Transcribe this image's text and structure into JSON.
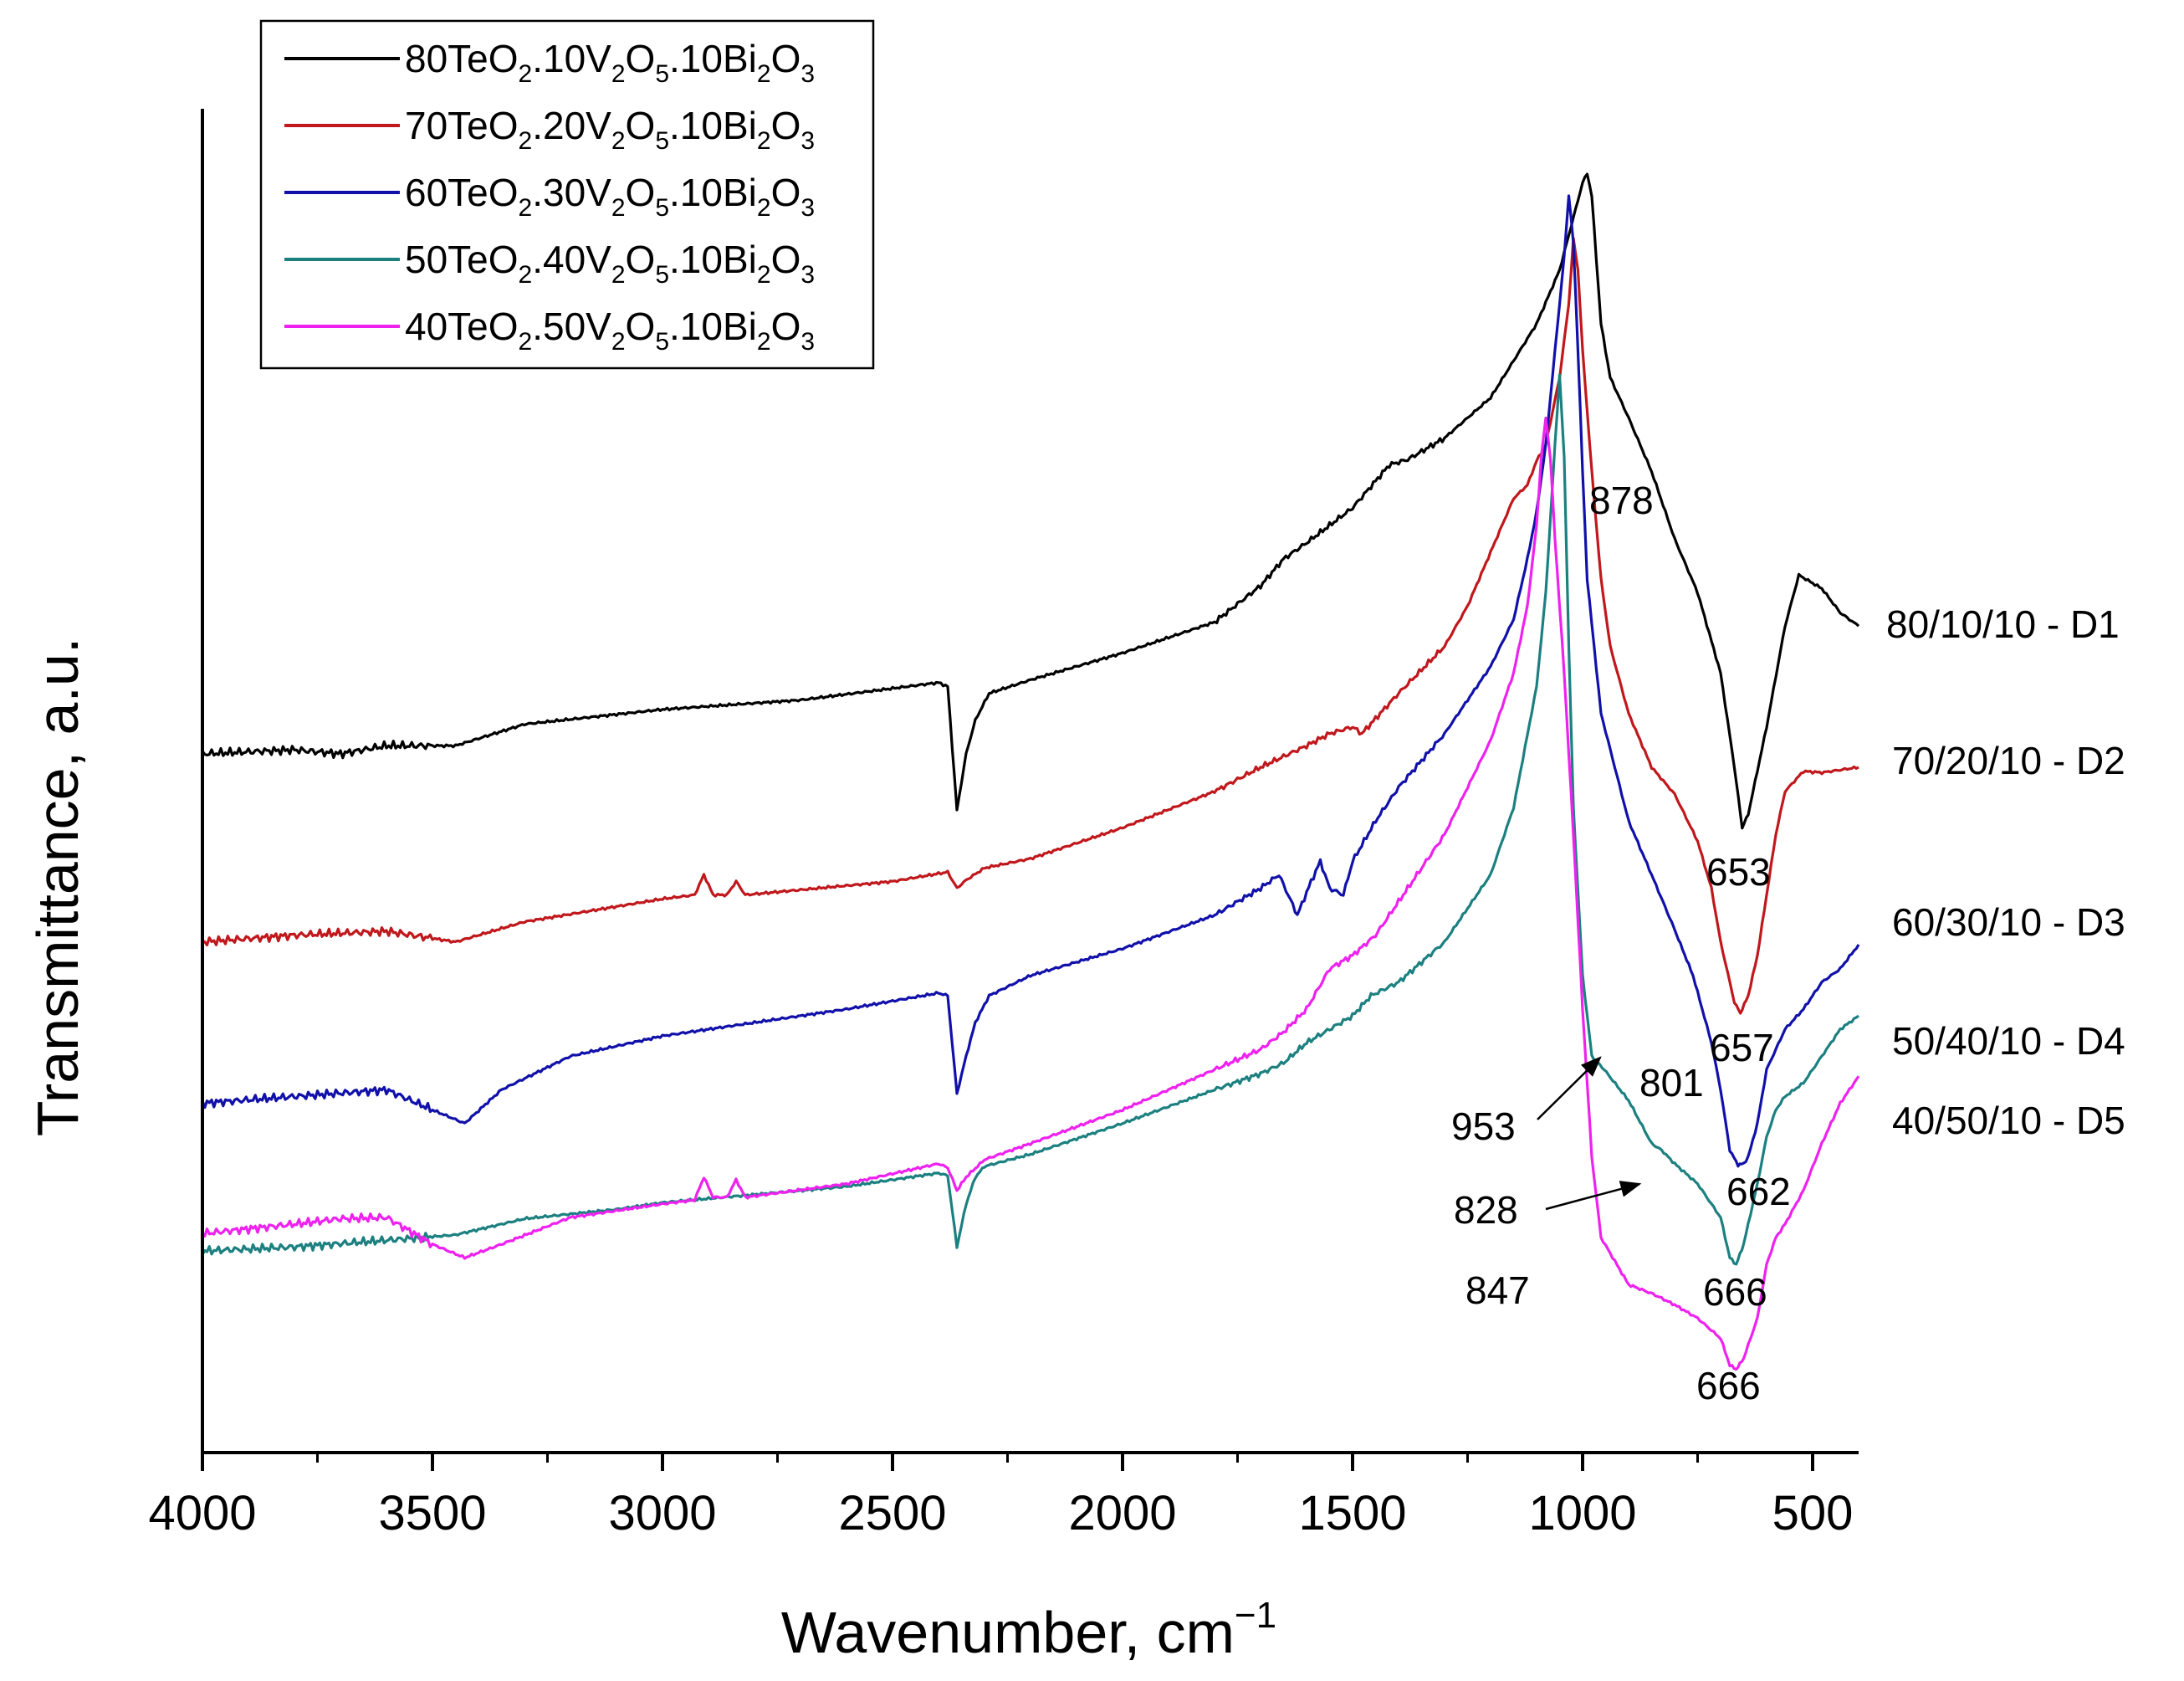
{
  "chart_data": {
    "type": "line",
    "title": "",
    "xlabel": "Wavenumber, cm",
    "xlabel_superscript": "−1",
    "ylabel": "Transmittance, a.u.",
    "xlim": [
      4000,
      400
    ],
    "x_reversed": true,
    "ylim": [
      0,
      100
    ],
    "y_ticks_shown": false,
    "grid": false,
    "legend_position": "top-left",
    "x_ticks": [
      "4000",
      "3500",
      "3000",
      "2500",
      "2000",
      "1500",
      "1000",
      "500"
    ],
    "series": [
      {
        "name": "80TeO2.10V2O5.10Bi2O3",
        "legend_parts": [
          "80TeO",
          "2",
          ".10V",
          "2",
          "O",
          "5",
          ".10Bi",
          "2",
          "O",
          "3"
        ],
        "label": "80/10/10 - D1",
        "color": "#000000",
        "points": [
          [
            4000,
            52
          ],
          [
            3800,
            52.3
          ],
          [
            3700,
            52
          ],
          [
            3600,
            52.6
          ],
          [
            3450,
            52.6
          ],
          [
            3300,
            54.2
          ],
          [
            3000,
            55.3
          ],
          [
            2700,
            56
          ],
          [
            2400,
            57.3
          ],
          [
            2380,
            57
          ],
          [
            2360,
            47.8
          ],
          [
            2340,
            52
          ],
          [
            2320,
            54.5
          ],
          [
            2290,
            56.5
          ],
          [
            2200,
            57.5
          ],
          [
            2000,
            59.5
          ],
          [
            1800,
            61.8
          ],
          [
            1700,
            64.5
          ],
          [
            1650,
            66.5
          ],
          [
            1600,
            67.7
          ],
          [
            1500,
            70.3
          ],
          [
            1420,
            73.5
          ],
          [
            1380,
            73.9
          ],
          [
            1300,
            75.5
          ],
          [
            1200,
            78.5
          ],
          [
            1100,
            84
          ],
          [
            1050,
            88
          ],
          [
            1000,
            94.5
          ],
          [
            990,
            95.2
          ],
          [
            980,
            93.5
          ],
          [
            960,
            84
          ],
          [
            940,
            80
          ],
          [
            900,
            77
          ],
          [
            850,
            73
          ],
          [
            800,
            68
          ],
          [
            750,
            64
          ],
          [
            700,
            58
          ],
          [
            670,
            51
          ],
          [
            653,
            46.5
          ],
          [
            640,
            47.5
          ],
          [
            600,
            54
          ],
          [
            560,
            61.5
          ],
          [
            530,
            65.3
          ],
          [
            480,
            64.3
          ],
          [
            440,
            62.5
          ],
          [
            400,
            61.5
          ]
        ],
        "annotations": [
          {
            "text": "878"
          },
          {
            "text": "653"
          }
        ]
      },
      {
        "name": "70TeO2.20V2O5.10Bi2O3",
        "legend_parts": [
          "70TeO",
          "2",
          ".20V",
          "2",
          "O",
          "5",
          ".10Bi",
          "2",
          "O",
          "3"
        ],
        "label": "70/20/10 - D2",
        "color": "#c0181c",
        "points": [
          [
            4000,
            38
          ],
          [
            3800,
            38.5
          ],
          [
            3600,
            38.8
          ],
          [
            3450,
            38
          ],
          [
            3300,
            39.5
          ],
          [
            3000,
            41.2
          ],
          [
            2930,
            41.5
          ],
          [
            2910,
            43
          ],
          [
            2890,
            41.5
          ],
          [
            2860,
            41.5
          ],
          [
            2840,
            42.5
          ],
          [
            2820,
            41.5
          ],
          [
            2500,
            42.5
          ],
          [
            2380,
            43.2
          ],
          [
            2360,
            42
          ],
          [
            2340,
            42.6
          ],
          [
            2300,
            43.5
          ],
          [
            2200,
            44.2
          ],
          [
            2000,
            46.5
          ],
          [
            1800,
            49.2
          ],
          [
            1700,
            51
          ],
          [
            1600,
            52.6
          ],
          [
            1550,
            53.5
          ],
          [
            1500,
            54
          ],
          [
            1480,
            53.5
          ],
          [
            1400,
            56.5
          ],
          [
            1300,
            60
          ],
          [
            1250,
            63
          ],
          [
            1200,
            67
          ],
          [
            1150,
            71
          ],
          [
            1120,
            72
          ],
          [
            1100,
            73.8
          ],
          [
            1080,
            75
          ],
          [
            1050,
            80
          ],
          [
            1030,
            85.5
          ],
          [
            1020,
            90.3
          ],
          [
            1010,
            88
          ],
          [
            1000,
            82
          ],
          [
            980,
            73
          ],
          [
            960,
            65
          ],
          [
            940,
            60
          ],
          [
            900,
            55
          ],
          [
            850,
            51
          ],
          [
            800,
            49
          ],
          [
            750,
            45.5
          ],
          [
            720,
            42
          ],
          [
            700,
            38
          ],
          [
            670,
            33.5
          ],
          [
            657,
            32.7
          ],
          [
            640,
            34
          ],
          [
            620,
            37
          ],
          [
            600,
            41.5
          ],
          [
            580,
            46
          ],
          [
            560,
            49.2
          ],
          [
            520,
            50.7
          ],
          [
            480,
            50.6
          ],
          [
            440,
            50.8
          ],
          [
            400,
            51
          ]
        ]
      },
      {
        "name": "60TeO2.30V2O5.10Bi2O3",
        "legend_parts": [
          "60TeO",
          "2",
          ".30V",
          "2",
          "O",
          "5",
          ".10Bi",
          "2",
          "O",
          "3"
        ],
        "label": "60/30/10 - D3",
        "color": "#1111aa",
        "points": [
          [
            4000,
            26
          ],
          [
            3800,
            26.5
          ],
          [
            3600,
            27
          ],
          [
            3500,
            25.5
          ],
          [
            3430,
            24.5
          ],
          [
            3350,
            27
          ],
          [
            3200,
            29.5
          ],
          [
            3000,
            31
          ],
          [
            2800,
            32
          ],
          [
            2600,
            33
          ],
          [
            2400,
            34.2
          ],
          [
            2380,
            34
          ],
          [
            2360,
            26.7
          ],
          [
            2340,
            29.5
          ],
          [
            2320,
            32
          ],
          [
            2290,
            34
          ],
          [
            2200,
            35.5
          ],
          [
            2000,
            37.5
          ],
          [
            1800,
            40
          ],
          [
            1700,
            42
          ],
          [
            1660,
            43
          ],
          [
            1620,
            40
          ],
          [
            1590,
            42.5
          ],
          [
            1570,
            44
          ],
          [
            1550,
            42
          ],
          [
            1520,
            41.5
          ],
          [
            1500,
            44
          ],
          [
            1450,
            47
          ],
          [
            1400,
            49.5
          ],
          [
            1300,
            53.5
          ],
          [
            1250,
            56
          ],
          [
            1200,
            58.5
          ],
          [
            1150,
            62
          ],
          [
            1120,
            66.5
          ],
          [
            1100,
            70
          ],
          [
            1080,
            75
          ],
          [
            1060,
            82
          ],
          [
            1040,
            89
          ],
          [
            1030,
            93.6
          ],
          [
            1020,
            90
          ],
          [
            1010,
            82
          ],
          [
            1000,
            73
          ],
          [
            990,
            65
          ],
          [
            960,
            55
          ],
          [
            900,
            47
          ],
          [
            850,
            43
          ],
          [
            801,
            39
          ],
          [
            760,
            35.5
          ],
          [
            720,
            30.5
          ],
          [
            700,
            27
          ],
          [
            680,
            22.5
          ],
          [
            662,
            21.4
          ],
          [
            650,
            21.5
          ],
          [
            640,
            22
          ],
          [
            620,
            24.5
          ],
          [
            600,
            28.5
          ],
          [
            580,
            30
          ],
          [
            560,
            31.5
          ],
          [
            520,
            33
          ],
          [
            480,
            35
          ],
          [
            440,
            36
          ],
          [
            400,
            37.8
          ]
        ]
      },
      {
        "name": "50TeO2.40V2O5.10Bi2O3",
        "legend_parts": [
          "50TeO",
          "2",
          ".40V",
          "2",
          "O",
          "5",
          ".10Bi",
          "2",
          "O",
          "3"
        ],
        "label": "50/40/10 - D4",
        "color": "#1d8080",
        "points": [
          [
            4000,
            15
          ],
          [
            3800,
            15.3
          ],
          [
            3600,
            15.8
          ],
          [
            3450,
            16.2
          ],
          [
            3300,
            17.4
          ],
          [
            3100,
            18.1
          ],
          [
            3000,
            18.6
          ],
          [
            2800,
            19.2
          ],
          [
            2600,
            19.8
          ],
          [
            2400,
            20.8
          ],
          [
            2380,
            20.6
          ],
          [
            2360,
            15.3
          ],
          [
            2340,
            18.5
          ],
          [
            2320,
            20.5
          ],
          [
            2300,
            21.3
          ],
          [
            2200,
            22.2
          ],
          [
            2000,
            24.5
          ],
          [
            1800,
            27
          ],
          [
            1700,
            28.2
          ],
          [
            1650,
            29
          ],
          [
            1600,
            30.5
          ],
          [
            1500,
            32.5
          ],
          [
            1460,
            34
          ],
          [
            1400,
            35
          ],
          [
            1300,
            38
          ],
          [
            1200,
            43
          ],
          [
            1150,
            48
          ],
          [
            1100,
            57
          ],
          [
            1080,
            64
          ],
          [
            1060,
            75
          ],
          [
            1050,
            80.2
          ],
          [
            1040,
            74
          ],
          [
            1030,
            60
          ],
          [
            1020,
            48
          ],
          [
            1000,
            35.5
          ],
          [
            980,
            29.5
          ],
          [
            953,
            28.5
          ],
          [
            900,
            26.2
          ],
          [
            850,
            23
          ],
          [
            828,
            22.5
          ],
          [
            800,
            21.5
          ],
          [
            750,
            20
          ],
          [
            700,
            17.5
          ],
          [
            680,
            14.5
          ],
          [
            666,
            14
          ],
          [
            650,
            15.5
          ],
          [
            620,
            20
          ],
          [
            600,
            23.5
          ],
          [
            580,
            25.5
          ],
          [
            560,
            26.5
          ],
          [
            520,
            27.5
          ],
          [
            480,
            29.5
          ],
          [
            440,
            31.5
          ],
          [
            400,
            32.5
          ]
        ]
      },
      {
        "name": "40TeO2.50V2O5.10Bi2O3",
        "legend_parts": [
          "40TeO",
          "2",
          ".50V",
          "2",
          "O",
          "5",
          ".10Bi",
          "2",
          "O",
          "3"
        ],
        "label": "40/50/10 - D5",
        "color": "#ee22ee",
        "points": [
          [
            4000,
            16.3
          ],
          [
            3800,
            17
          ],
          [
            3700,
            17.4
          ],
          [
            3600,
            17.5
          ],
          [
            3500,
            15.5
          ],
          [
            3430,
            14.5
          ],
          [
            3350,
            15.5
          ],
          [
            3200,
            17.5
          ],
          [
            3000,
            18.5
          ],
          [
            2930,
            18.8
          ],
          [
            2910,
            20.5
          ],
          [
            2890,
            19
          ],
          [
            2860,
            19
          ],
          [
            2840,
            20.3
          ],
          [
            2820,
            19
          ],
          [
            2600,
            20
          ],
          [
            2400,
            21.5
          ],
          [
            2380,
            21.2
          ],
          [
            2360,
            19.5
          ],
          [
            2340,
            20.5
          ],
          [
            2300,
            21.8
          ],
          [
            2200,
            23
          ],
          [
            2000,
            25.5
          ],
          [
            1800,
            28.5
          ],
          [
            1700,
            30
          ],
          [
            1650,
            31.3
          ],
          [
            1600,
            33
          ],
          [
            1550,
            36
          ],
          [
            1500,
            37
          ],
          [
            1450,
            38.5
          ],
          [
            1400,
            41
          ],
          [
            1300,
            46
          ],
          [
            1200,
            53
          ],
          [
            1150,
            58
          ],
          [
            1120,
            63
          ],
          [
            1100,
            69
          ],
          [
            1090,
            74
          ],
          [
            1080,
            77
          ],
          [
            1070,
            74
          ],
          [
            1060,
            68
          ],
          [
            1040,
            58
          ],
          [
            1020,
            46
          ],
          [
            1000,
            33
          ],
          [
            980,
            22
          ],
          [
            960,
            16
          ],
          [
            900,
            12.5
          ],
          [
            847,
            11.8
          ],
          [
            800,
            11
          ],
          [
            750,
            10
          ],
          [
            700,
            8.5
          ],
          [
            680,
            6.5
          ],
          [
            666,
            6.2
          ],
          [
            650,
            7
          ],
          [
            620,
            10
          ],
          [
            600,
            14
          ],
          [
            580,
            16
          ],
          [
            560,
            17
          ],
          [
            520,
            19.5
          ],
          [
            480,
            23
          ],
          [
            440,
            26
          ],
          [
            400,
            28
          ]
        ]
      }
    ],
    "peak_annotations": [
      {
        "text": "878",
        "series": "80TeO2.10V2O5.10Bi2O3",
        "arrow": false
      },
      {
        "text": "653",
        "series": "80TeO2.10V2O5.10Bi2O3",
        "arrow": false
      },
      {
        "text": "657",
        "series": "70TeO2.20V2O5.10Bi2O3",
        "arrow": false
      },
      {
        "text": "801",
        "series": "60TeO2.30V2O5.10Bi2O3",
        "arrow": false
      },
      {
        "text": "662",
        "series": "60TeO2.30V2O5.10Bi2O3",
        "arrow": false
      },
      {
        "text": "953",
        "series": "50TeO2.40V2O5.10Bi2O3",
        "arrow": true
      },
      {
        "text": "828",
        "series": "50TeO2.40V2O5.10Bi2O3",
        "arrow": true
      },
      {
        "text": "666",
        "series": "50TeO2.40V2O5.10Bi2O3",
        "arrow": false
      },
      {
        "text": "847",
        "series": "40TeO2.50V2O5.10Bi2O3",
        "arrow": true
      },
      {
        "text": "666",
        "series": "40TeO2.50V2O5.10Bi2O3",
        "arrow": false
      }
    ]
  }
}
